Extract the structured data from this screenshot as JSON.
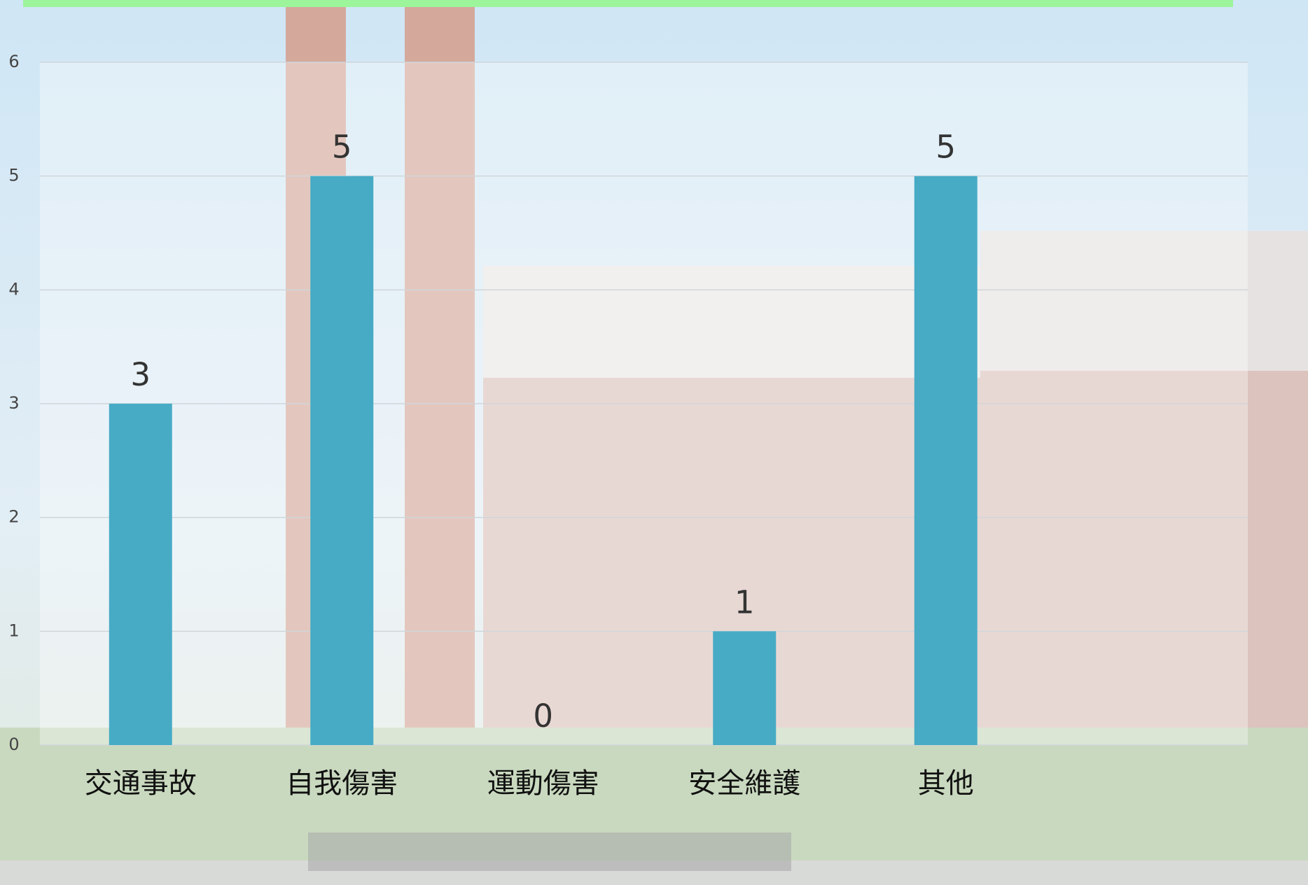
{
  "chart_data": {
    "type": "bar",
    "categories": [
      "交通事故",
      "自我傷害",
      "運動傷害",
      "安全維護",
      "其他"
    ],
    "values": [
      3,
      5,
      0,
      1,
      5
    ],
    "color": "#47abc5",
    "ylim": [
      0,
      6
    ],
    "yticks": [
      0,
      1,
      2,
      3,
      4,
      5,
      6
    ],
    "grid": true
  }
}
